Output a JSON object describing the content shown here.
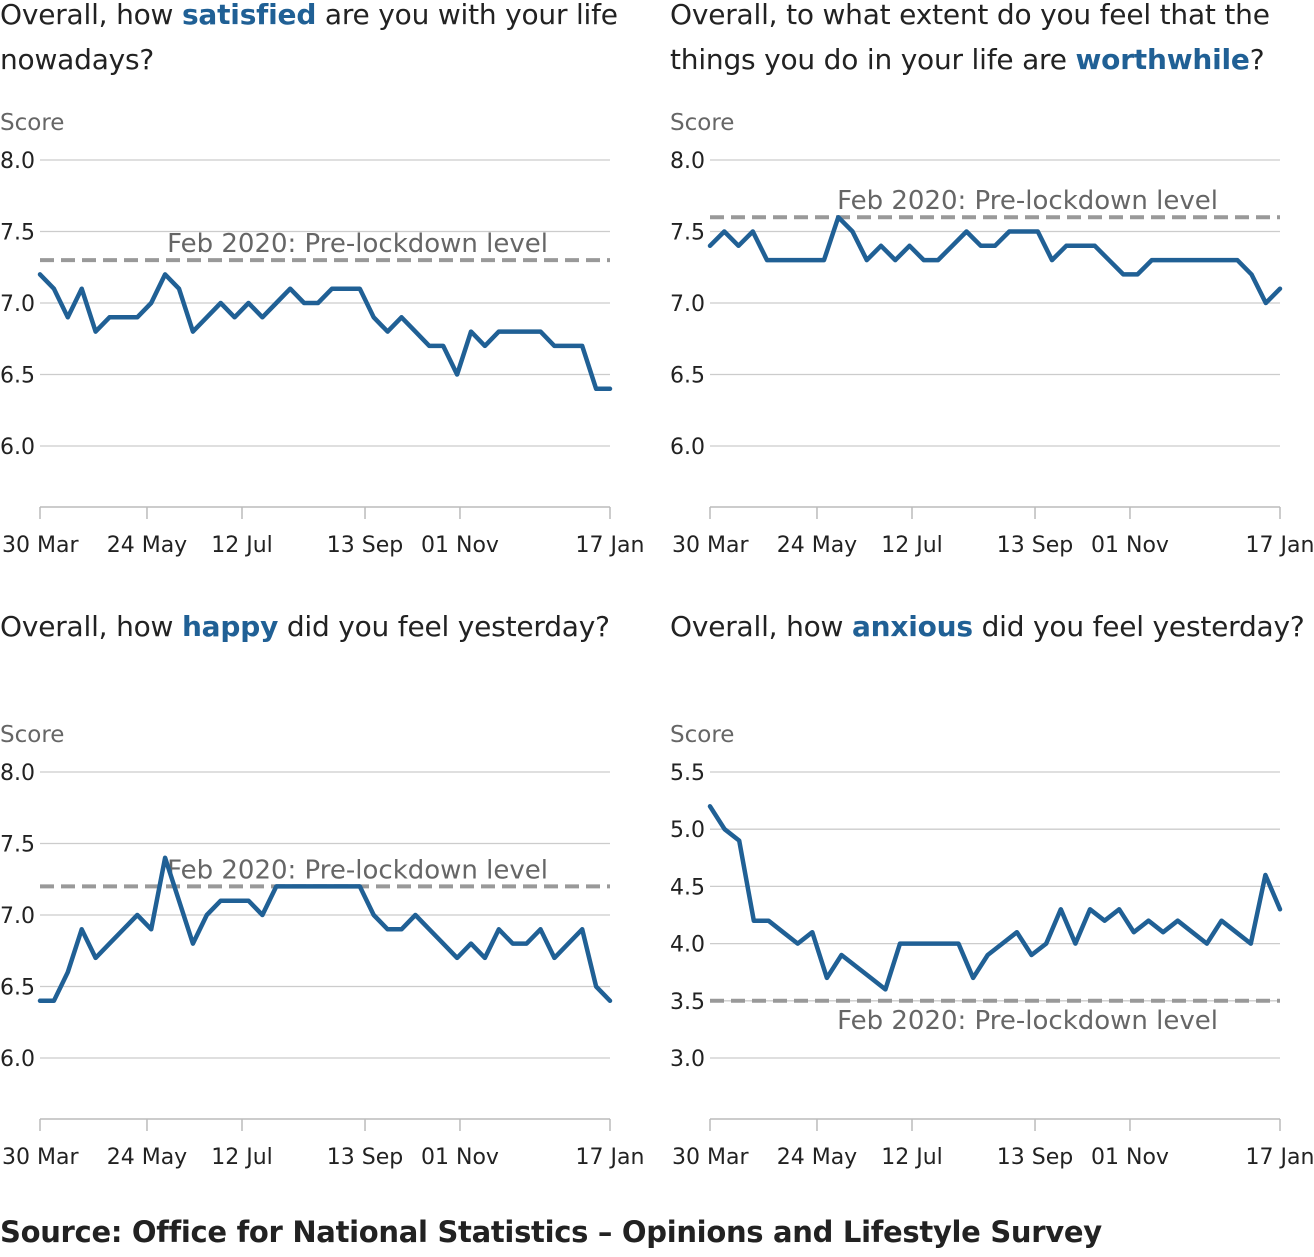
{
  "source": "Source: Office for National Statistics – Opinions and Lifestyle Survey",
  "chart_data": [
    {
      "type": "line",
      "title": {
        "before": "Overall, how ",
        "keyword": "satisfied",
        "after": " are you with your life nowadays?"
      },
      "ylabel": "Score",
      "ylim": [
        6.0,
        8.0
      ],
      "yticks": [
        "8.0",
        "7.5",
        "7.0",
        "6.5",
        "6.0"
      ],
      "xticks": [
        "30 Mar",
        "24 May",
        "12 Jul",
        "13 Sep",
        "01 Nov",
        "17 Jan"
      ],
      "reference": {
        "label": "Feb 2020: Pre-lockdown level",
        "value": 7.3
      },
      "series": [
        {
          "values": [
            7.2,
            7.1,
            6.9,
            7.1,
            6.8,
            6.9,
            6.9,
            6.9,
            7.0,
            7.2,
            7.1,
            6.8,
            6.9,
            7.0,
            6.9,
            7.0,
            6.9,
            7.0,
            7.1,
            7.0,
            7.0,
            7.1,
            7.1,
            7.1,
            6.9,
            6.8,
            6.9,
            6.8,
            6.7,
            6.7,
            6.5,
            6.8,
            6.7,
            6.8,
            6.8,
            6.8,
            6.8,
            6.7,
            6.7,
            6.7,
            6.4,
            6.4
          ]
        }
      ]
    },
    {
      "type": "line",
      "title": {
        "before": "Overall, to what extent do you feel that the things you do in your life are ",
        "keyword": "worthwhile",
        "after": "?"
      },
      "ylabel": "Score",
      "ylim": [
        6.0,
        8.0
      ],
      "yticks": [
        "8.0",
        "7.5",
        "7.0",
        "6.5",
        "6.0"
      ],
      "xticks": [
        "30 Mar",
        "24 May",
        "12 Jul",
        "13 Sep",
        "01 Nov",
        "17 Jan"
      ],
      "reference": {
        "label": "Feb 2020: Pre-lockdown level",
        "value": 7.6
      },
      "series": [
        {
          "values": [
            7.4,
            7.5,
            7.4,
            7.5,
            7.3,
            7.3,
            7.3,
            7.3,
            7.3,
            7.6,
            7.5,
            7.3,
            7.4,
            7.3,
            7.4,
            7.3,
            7.3,
            7.4,
            7.5,
            7.4,
            7.4,
            7.5,
            7.5,
            7.5,
            7.3,
            7.4,
            7.4,
            7.4,
            7.3,
            7.2,
            7.2,
            7.3,
            7.3,
            7.3,
            7.3,
            7.3,
            7.3,
            7.3,
            7.2,
            7.0,
            7.1
          ]
        }
      ]
    },
    {
      "type": "line",
      "title": {
        "before": "Overall, how ",
        "keyword": "happy",
        "after": " did you feel yesterday?"
      },
      "ylabel": "Score",
      "ylim": [
        6.0,
        8.0
      ],
      "yticks": [
        "8.0",
        "7.5",
        "7.0",
        "6.5",
        "6.0"
      ],
      "xticks": [
        "30 Mar",
        "24 May",
        "12 Jul",
        "13 Sep",
        "01 Nov",
        "17 Jan"
      ],
      "reference": {
        "label": "Feb 2020: Pre-lockdown level",
        "value": 7.2
      },
      "series": [
        {
          "values": [
            6.4,
            6.4,
            6.6,
            6.9,
            6.7,
            6.8,
            6.9,
            7.0,
            6.9,
            7.4,
            7.1,
            6.8,
            7.0,
            7.1,
            7.1,
            7.1,
            7.0,
            7.2,
            7.2,
            7.2,
            7.2,
            7.2,
            7.2,
            7.2,
            7.0,
            6.9,
            6.9,
            7.0,
            6.9,
            6.8,
            6.7,
            6.8,
            6.7,
            6.9,
            6.8,
            6.8,
            6.9,
            6.7,
            6.8,
            6.9,
            6.5,
            6.4
          ]
        }
      ]
    },
    {
      "type": "line",
      "title": {
        "before": "Overall, how ",
        "keyword": "anxious",
        "after": " did you feel yesterday?"
      },
      "ylabel": "Score",
      "ylim": [
        3.0,
        5.5
      ],
      "yticks": [
        "5.5",
        "5.0",
        "4.5",
        "4.0",
        "3.5",
        "3.0"
      ],
      "xticks": [
        "30 Mar",
        "24 May",
        "12 Jul",
        "13 Sep",
        "01 Nov",
        "17 Jan"
      ],
      "reference": {
        "label": "Feb 2020: Pre-lockdown level",
        "value": 3.5,
        "label_below": true
      },
      "series": [
        {
          "values": [
            5.2,
            5.0,
            4.9,
            4.2,
            4.2,
            4.1,
            4.0,
            4.1,
            3.7,
            3.9,
            3.8,
            3.7,
            3.6,
            4.0,
            4.0,
            4.0,
            4.0,
            4.0,
            3.7,
            3.9,
            4.0,
            4.1,
            3.9,
            4.0,
            4.3,
            4.0,
            4.3,
            4.2,
            4.3,
            4.1,
            4.2,
            4.1,
            4.2,
            4.1,
            4.0,
            4.2,
            4.1,
            4.0,
            4.6,
            4.3
          ]
        }
      ]
    }
  ],
  "colors": {
    "line": "#206095",
    "reference": "#999999",
    "grid": "#cccccc",
    "axis": "#bbbbbb",
    "text": "#222222",
    "muted": "#666666"
  }
}
